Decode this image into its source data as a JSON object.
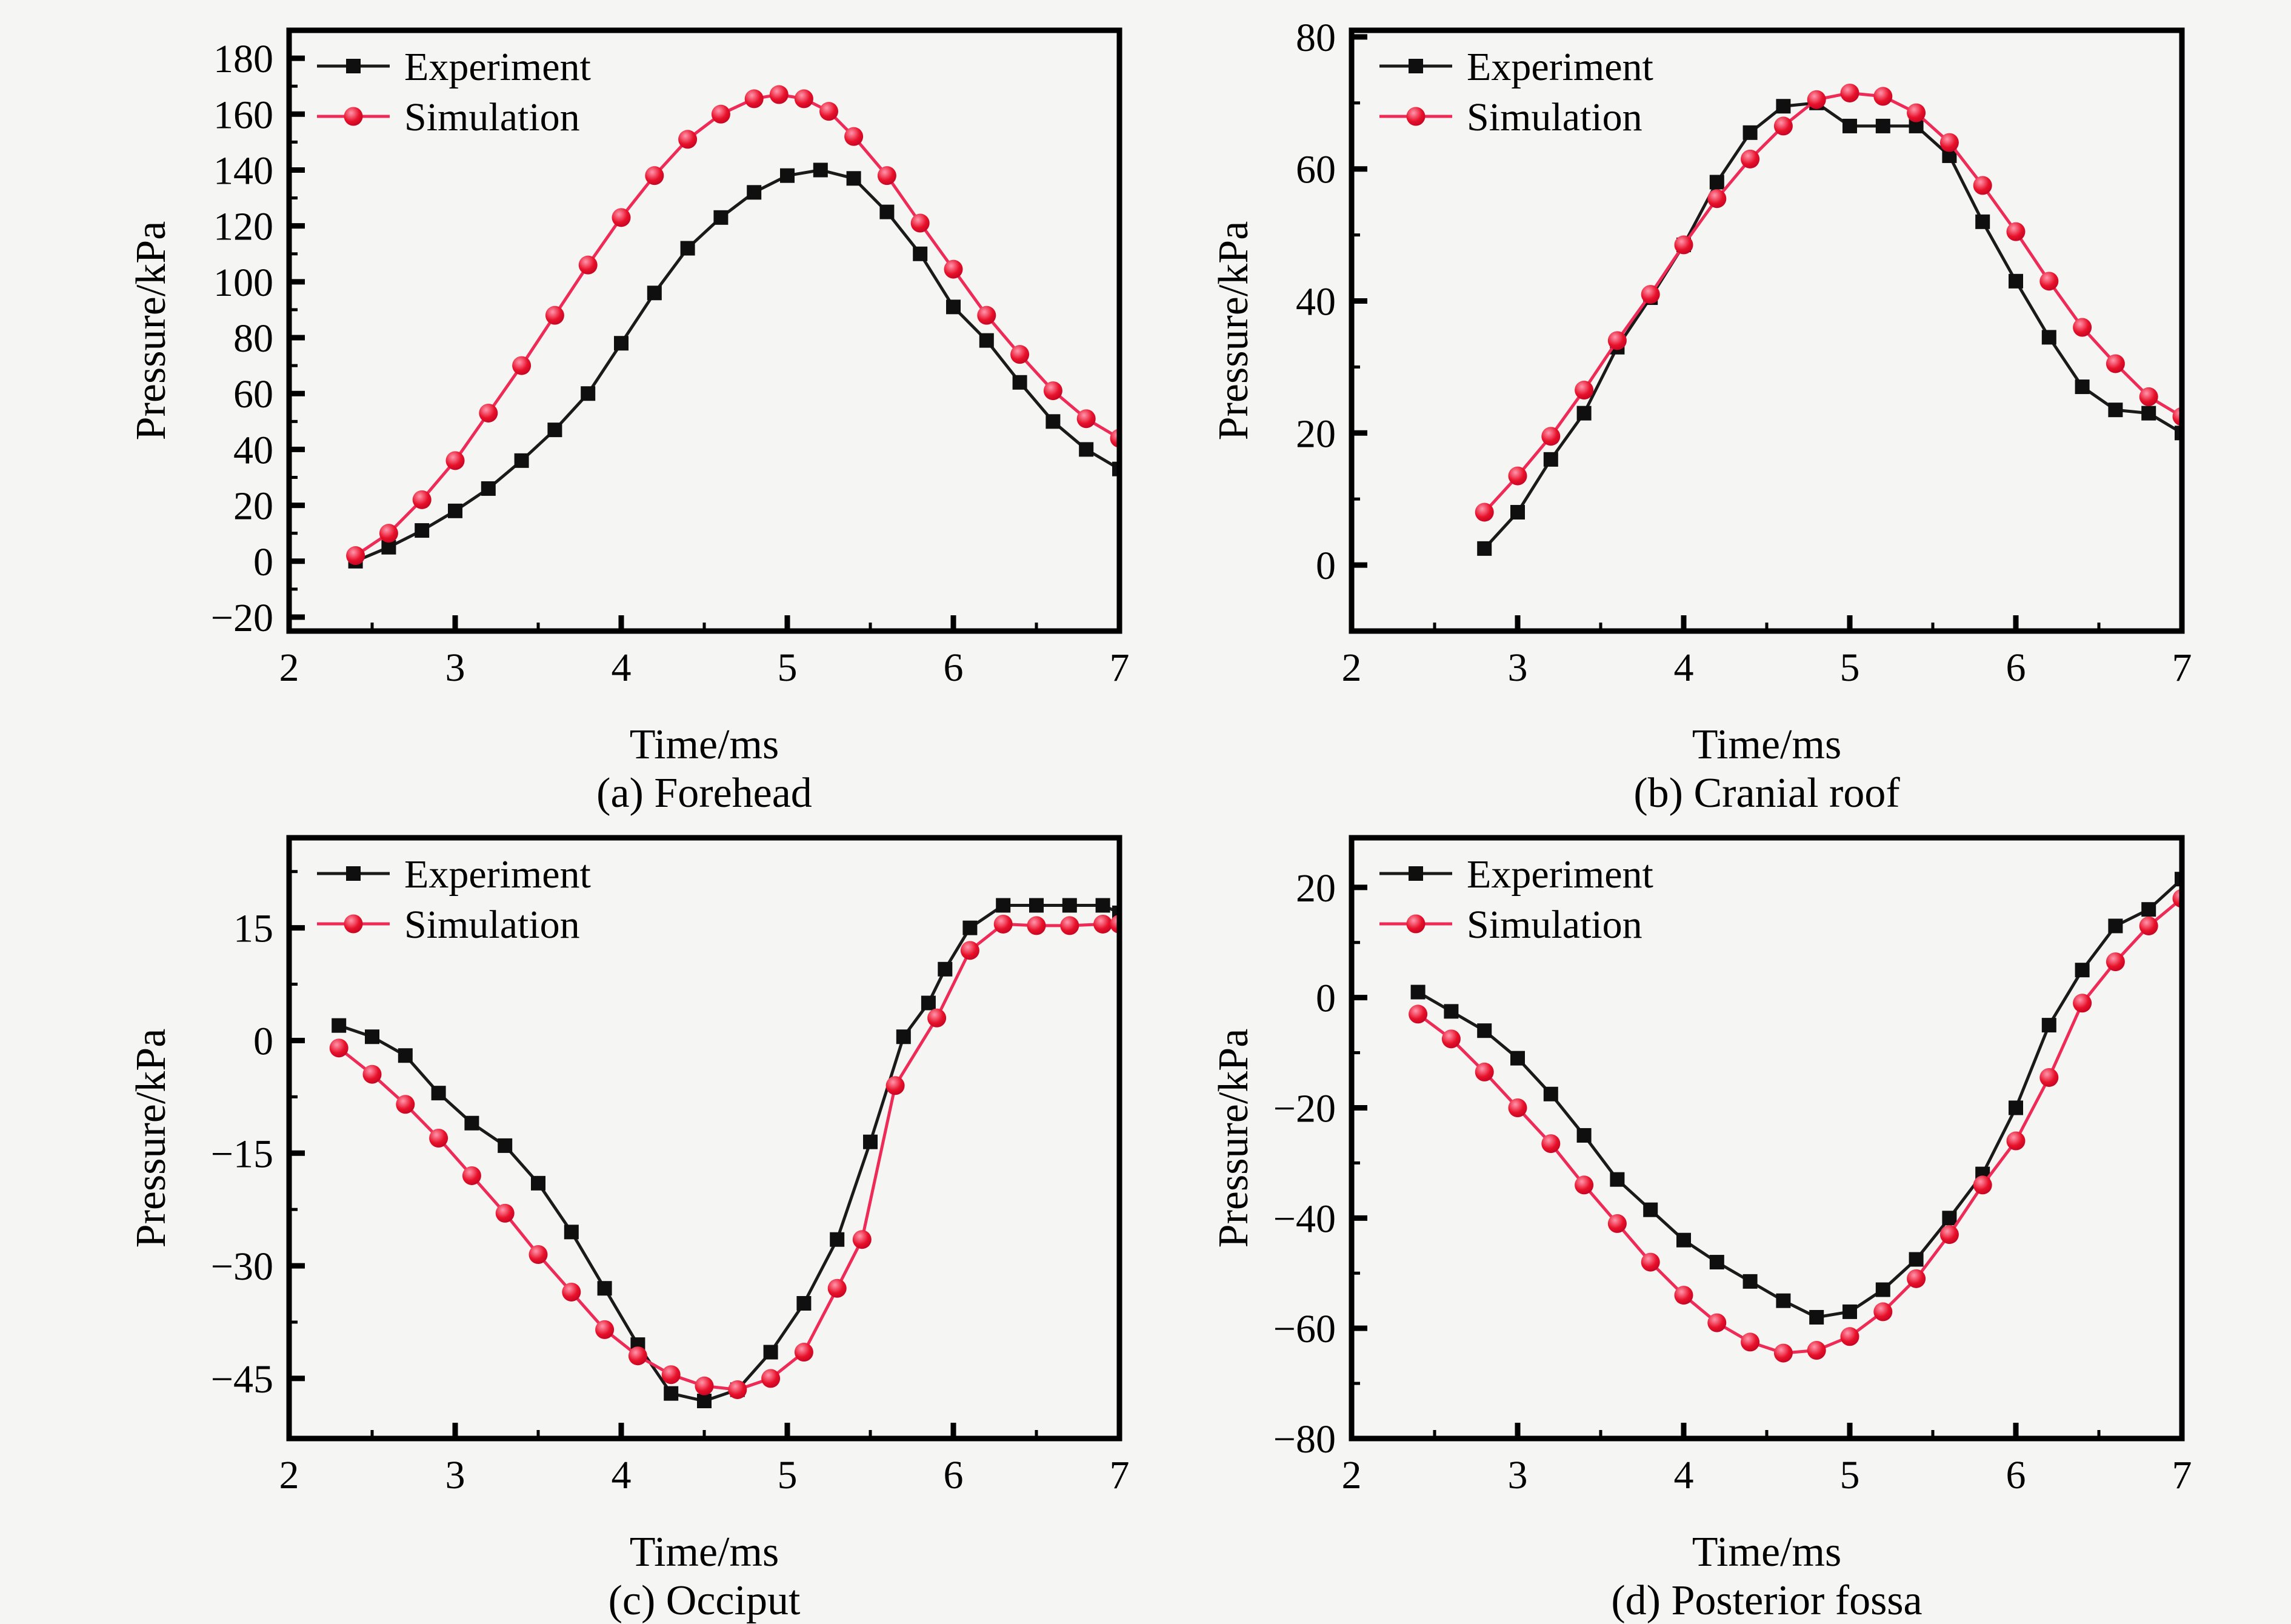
{
  "figure": {
    "legend": {
      "experiment": "Experiment",
      "simulation": "Simulation"
    },
    "colors": {
      "background": "#f5f5f3",
      "axis": "#000000",
      "text": "#000000",
      "experiment_line": "#1a1a1a",
      "experiment_marker": "#0f0f0f",
      "simulation_line": "#ee2b57",
      "simulation_marker_core": "#e8112b",
      "simulation_marker_deep": "#b8001f",
      "simulation_marker_glow": "#ff97ac"
    }
  },
  "chart_data": [
    {
      "id": "a",
      "type": "line",
      "title": "(a) Forehead",
      "xlabel": "Time/ms",
      "ylabel": "Pressure/kPa",
      "xlim": [
        2,
        7
      ],
      "ylim": [
        -25,
        190
      ],
      "x_major_ticks": [
        2,
        3,
        4,
        5,
        6,
        7
      ],
      "x_tick_labels": [
        "2",
        "3",
        "4",
        "5",
        "6",
        "7"
      ],
      "x_minor_ticks": [
        2.5,
        3.5,
        4.5,
        5.5,
        6.5
      ],
      "y_major_ticks": [
        -20,
        0,
        20,
        40,
        60,
        80,
        100,
        120,
        140,
        160,
        180
      ],
      "y_tick_labels": [
        "−20",
        "0",
        "20",
        "40",
        "60",
        "80",
        "100",
        "120",
        "140",
        "160",
        "180"
      ],
      "y_minor_ticks": [
        -10,
        10,
        30,
        50,
        70,
        90,
        110,
        130,
        150,
        170
      ],
      "legend_position": "top-left",
      "grid": false,
      "series": [
        {
          "name": "Experiment",
          "style": "experiment",
          "marker": "square",
          "x": [
            2.4,
            2.6,
            2.8,
            3.0,
            3.2,
            3.4,
            3.6,
            3.8,
            4.0,
            4.2,
            4.4,
            4.6,
            4.8,
            5.0,
            5.2,
            5.4,
            5.6,
            5.8,
            6.0,
            6.2,
            6.4,
            6.6,
            6.8,
            7.0
          ],
          "y": [
            0,
            5,
            11,
            18,
            26,
            36,
            47,
            60,
            78,
            96,
            112,
            123,
            132,
            138,
            140,
            137,
            125,
            110,
            91,
            79,
            64,
            50,
            40,
            33
          ]
        },
        {
          "name": "Simulation",
          "style": "simulation",
          "marker": "circle",
          "x": [
            2.4,
            2.6,
            2.8,
            3.0,
            3.2,
            3.4,
            3.6,
            3.8,
            4.0,
            4.2,
            4.4,
            4.6,
            4.8,
            4.95,
            5.1,
            5.25,
            5.4,
            5.6,
            5.8,
            6.0,
            6.2,
            6.4,
            6.6,
            6.8,
            7.0
          ],
          "y": [
            2,
            10,
            22,
            36,
            53,
            70,
            88,
            106,
            123,
            138,
            151,
            160,
            165.5,
            167,
            165.5,
            161,
            152,
            138,
            121,
            104.5,
            88,
            74,
            61,
            51,
            44
          ]
        }
      ]
    },
    {
      "id": "b",
      "type": "line",
      "title": "(b) Cranial roof",
      "xlabel": "Time/ms",
      "ylabel": "Pressure/kPa",
      "xlim": [
        2,
        7
      ],
      "ylim": [
        -10,
        81
      ],
      "x_major_ticks": [
        2,
        3,
        4,
        5,
        6,
        7
      ],
      "x_tick_labels": [
        "2",
        "3",
        "4",
        "5",
        "6",
        "7"
      ],
      "x_minor_ticks": [
        2.5,
        3.5,
        4.5,
        5.5,
        6.5
      ],
      "y_major_ticks": [
        0,
        20,
        40,
        60,
        80
      ],
      "y_tick_labels": [
        "0",
        "20",
        "40",
        "60",
        "80"
      ],
      "y_minor_ticks": [
        10,
        30,
        50,
        70
      ],
      "legend_position": "top-left",
      "grid": false,
      "series": [
        {
          "name": "Experiment",
          "style": "experiment",
          "marker": "square",
          "x": [
            2.8,
            3.0,
            3.2,
            3.4,
            3.6,
            3.8,
            4.0,
            4.2,
            4.4,
            4.6,
            4.8,
            5.0,
            5.2,
            5.4,
            5.6,
            5.8,
            6.0,
            6.2,
            6.4,
            6.6,
            6.8,
            7.0
          ],
          "y": [
            2.5,
            8,
            16,
            23,
            33,
            40.5,
            48.5,
            58,
            65.5,
            69.5,
            70,
            66.5,
            66.5,
            66.5,
            62,
            52,
            43,
            34.5,
            27,
            23.5,
            23,
            20
          ]
        },
        {
          "name": "Simulation",
          "style": "simulation",
          "marker": "circle",
          "x": [
            2.8,
            3.0,
            3.2,
            3.4,
            3.6,
            3.8,
            4.0,
            4.2,
            4.4,
            4.6,
            4.8,
            5.0,
            5.2,
            5.4,
            5.6,
            5.8,
            6.0,
            6.2,
            6.4,
            6.6,
            6.8,
            7.0
          ],
          "y": [
            8,
            13.5,
            19.5,
            26.5,
            34,
            41,
            48.5,
            55.5,
            61.5,
            66.5,
            70.5,
            71.5,
            71,
            68.5,
            64,
            57.5,
            50.5,
            43,
            36,
            30.5,
            25.5,
            22.5
          ]
        }
      ]
    },
    {
      "id": "c",
      "type": "line",
      "title": "(c) Occiput",
      "xlabel": "Time/ms",
      "ylabel": "Pressure/kPa",
      "xlim": [
        2,
        7
      ],
      "ylim": [
        -53,
        27
      ],
      "x_major_ticks": [
        2,
        3,
        4,
        5,
        6,
        7
      ],
      "x_tick_labels": [
        "2",
        "3",
        "4",
        "5",
        "6",
        "7"
      ],
      "x_minor_ticks": [
        2.5,
        3.5,
        4.5,
        5.5,
        6.5
      ],
      "y_major_ticks": [
        -45,
        -30,
        -15,
        0,
        15
      ],
      "y_tick_labels": [
        "−45",
        "−30",
        "−15",
        "0",
        "15"
      ],
      "y_minor_ticks": [
        -37.5,
        -22.5,
        -7.5,
        7.5,
        22.5
      ],
      "legend_position": "top-left",
      "grid": false,
      "series": [
        {
          "name": "Experiment",
          "style": "experiment",
          "marker": "square",
          "x": [
            2.3,
            2.5,
            2.7,
            2.9,
            3.1,
            3.3,
            3.5,
            3.7,
            3.9,
            4.1,
            4.3,
            4.5,
            4.7,
            4.9,
            5.1,
            5.3,
            5.5,
            5.7,
            5.85,
            5.95,
            6.1,
            6.3,
            6.5,
            6.7,
            6.9,
            7.0
          ],
          "y": [
            2,
            0.5,
            -2,
            -7,
            -11,
            -14,
            -19,
            -25.5,
            -33,
            -40.5,
            -47,
            -48,
            -46.5,
            -41.5,
            -35,
            -26.5,
            -13.5,
            0.5,
            5,
            9.5,
            15,
            18,
            18,
            18,
            18,
            17
          ]
        },
        {
          "name": "Simulation",
          "style": "simulation",
          "marker": "circle",
          "x": [
            2.3,
            2.5,
            2.7,
            2.9,
            3.1,
            3.3,
            3.5,
            3.7,
            3.9,
            4.1,
            4.3,
            4.5,
            4.7,
            4.9,
            5.1,
            5.3,
            5.45,
            5.65,
            5.9,
            6.1,
            6.3,
            6.5,
            6.7,
            6.9,
            7.0
          ],
          "y": [
            -1,
            -4.5,
            -8.5,
            -13,
            -18,
            -23,
            -28.5,
            -33.5,
            -38.5,
            -42,
            -44.5,
            -46,
            -46.5,
            -45,
            -41.5,
            -33,
            -26.5,
            -6,
            3,
            12,
            15.5,
            15.3,
            15.3,
            15.5,
            15.5
          ]
        }
      ]
    },
    {
      "id": "d",
      "type": "line",
      "title": "(d) Posterior fossa",
      "xlabel": "Time/ms",
      "ylabel": "Pressure/kPa",
      "xlim": [
        2,
        7
      ],
      "ylim": [
        -80,
        29
      ],
      "x_major_ticks": [
        2,
        3,
        4,
        5,
        6,
        7
      ],
      "x_tick_labels": [
        "2",
        "3",
        "4",
        "5",
        "6",
        "7"
      ],
      "x_minor_ticks": [
        2.5,
        3.5,
        4.5,
        5.5,
        6.5
      ],
      "y_major_ticks": [
        -80,
        -60,
        -40,
        -20,
        0,
        20
      ],
      "y_tick_labels": [
        "−80",
        "−60",
        "−40",
        "−20",
        "0",
        "20"
      ],
      "y_minor_ticks": [
        -70,
        -50,
        -30,
        -10,
        10
      ],
      "legend_position": "top-left",
      "grid": false,
      "series": [
        {
          "name": "Experiment",
          "style": "experiment",
          "marker": "square",
          "x": [
            2.4,
            2.6,
            2.8,
            3.0,
            3.2,
            3.4,
            3.6,
            3.8,
            4.0,
            4.2,
            4.4,
            4.6,
            4.8,
            5.0,
            5.2,
            5.4,
            5.6,
            5.8,
            6.0,
            6.2,
            6.4,
            6.6,
            6.8,
            7.0
          ],
          "y": [
            1,
            -2.5,
            -6,
            -11,
            -17.5,
            -25,
            -33,
            -38.5,
            -44,
            -48,
            -51.5,
            -55,
            -58,
            -57,
            -53,
            -47.5,
            -40,
            -32,
            -20,
            -5,
            5,
            13,
            16,
            21.5
          ]
        },
        {
          "name": "Simulation",
          "style": "simulation",
          "marker": "circle",
          "x": [
            2.4,
            2.6,
            2.8,
            3.0,
            3.2,
            3.4,
            3.6,
            3.8,
            4.0,
            4.2,
            4.4,
            4.6,
            4.8,
            5.0,
            5.2,
            5.4,
            5.6,
            5.8,
            6.0,
            6.2,
            6.4,
            6.6,
            6.8,
            7.0
          ],
          "y": [
            -3,
            -7.5,
            -13.5,
            -20,
            -26.5,
            -34,
            -41,
            -48,
            -54,
            -59,
            -62.5,
            -64.5,
            -64,
            -61.5,
            -57,
            -51,
            -43,
            -34,
            -26,
            -14.5,
            -1,
            6.5,
            13,
            18
          ]
        }
      ]
    }
  ]
}
